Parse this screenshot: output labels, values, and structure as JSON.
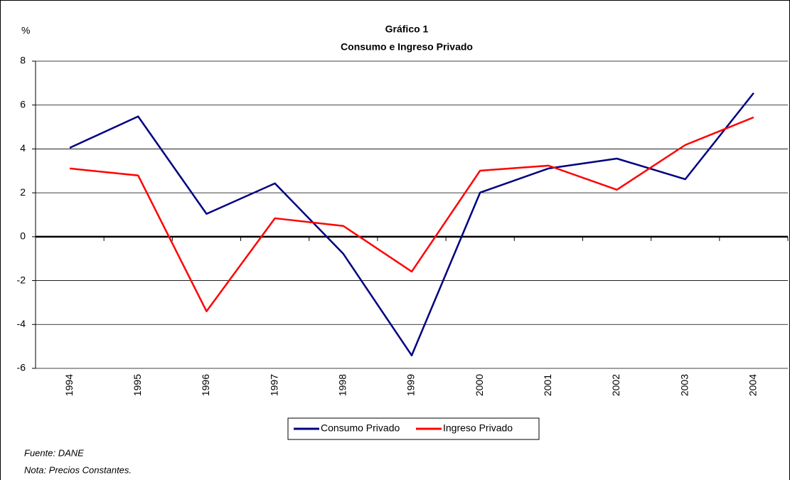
{
  "chart_data": {
    "type": "line",
    "title": "Gráfico 1",
    "subtitle": "Consumo e Ingreso  Privado",
    "y_label": "%",
    "categories": [
      "1994",
      "1995",
      "1996",
      "1997",
      "1998",
      "1999",
      "2000",
      "2001",
      "2002",
      "2003",
      "2004"
    ],
    "series": [
      {
        "name": "Consumo Privado",
        "color": "#000080",
        "values": [
          4.05,
          5.48,
          1.04,
          2.43,
          -0.78,
          -5.41,
          2.01,
          3.11,
          3.56,
          2.62,
          6.55
        ]
      },
      {
        "name": "Ingreso Privado",
        "color": "#ff0000",
        "values": [
          3.11,
          2.79,
          -3.4,
          0.84,
          0.49,
          -1.59,
          3.01,
          3.24,
          2.14,
          4.18,
          5.44
        ]
      }
    ],
    "ylim": [
      -6,
      8
    ],
    "yticks": [
      -6,
      -4,
      -2,
      0,
      2,
      4,
      6,
      8
    ],
    "grid": true,
    "legend": "bottom",
    "notes": [
      "Fuente:  DANE",
      "Nota: Precios Constantes."
    ]
  }
}
